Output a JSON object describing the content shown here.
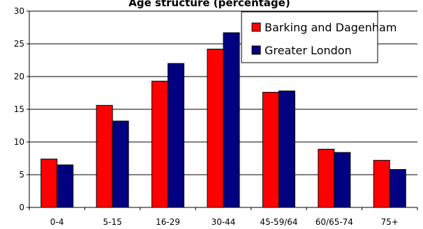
{
  "chart_data": {
    "type": "bar",
    "title": "Age structure (percentage)",
    "xlabel": "",
    "ylabel": "",
    "categories": [
      "0-4",
      "5-15",
      "16-29",
      "30-44",
      "45-59/64",
      "60/65-74",
      "75+"
    ],
    "series": [
      {
        "name": "Barking and Dagenham",
        "color": "#ff0000",
        "values": [
          7.4,
          15.6,
          19.3,
          24.2,
          17.6,
          8.9,
          7.2
        ]
      },
      {
        "name": "Greater London",
        "color": "#000080",
        "values": [
          6.5,
          13.2,
          22.0,
          26.7,
          17.8,
          8.4,
          5.8
        ]
      }
    ],
    "ylim": [
      0,
      30
    ],
    "yticks": [
      0,
      5,
      10,
      15,
      20,
      25,
      30
    ],
    "grid": true,
    "legend_position": "top-right"
  }
}
